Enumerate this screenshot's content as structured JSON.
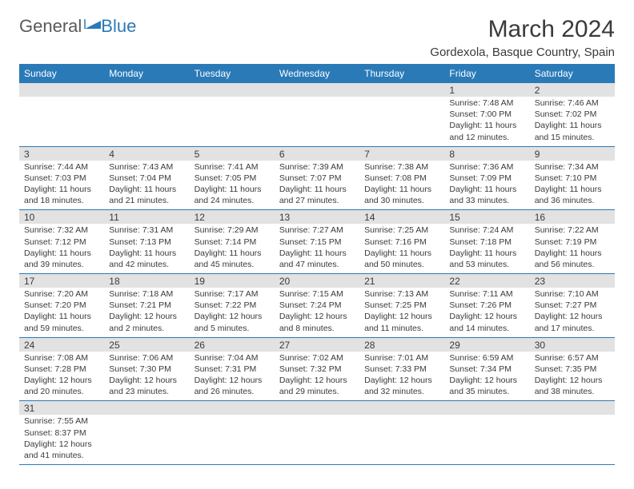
{
  "logo": {
    "text_general": "General",
    "text_blue": "Blue",
    "icon_color": "#2a7ab8",
    "general_color": "#5a5a5a"
  },
  "title": "March 2024",
  "subtitle": "Gordexola, Basque Country, Spain",
  "header_bg": "#2a7ab8",
  "daynum_bg": "#e2e2e2",
  "days": [
    "Sunday",
    "Monday",
    "Tuesday",
    "Wednesday",
    "Thursday",
    "Friday",
    "Saturday"
  ],
  "weeks": [
    [
      null,
      null,
      null,
      null,
      null,
      {
        "num": "1",
        "sunrise": "Sunrise: 7:48 AM",
        "sunset": "Sunset: 7:00 PM",
        "daylight": "Daylight: 11 hours and 12 minutes."
      },
      {
        "num": "2",
        "sunrise": "Sunrise: 7:46 AM",
        "sunset": "Sunset: 7:02 PM",
        "daylight": "Daylight: 11 hours and 15 minutes."
      }
    ],
    [
      {
        "num": "3",
        "sunrise": "Sunrise: 7:44 AM",
        "sunset": "Sunset: 7:03 PM",
        "daylight": "Daylight: 11 hours and 18 minutes."
      },
      {
        "num": "4",
        "sunrise": "Sunrise: 7:43 AM",
        "sunset": "Sunset: 7:04 PM",
        "daylight": "Daylight: 11 hours and 21 minutes."
      },
      {
        "num": "5",
        "sunrise": "Sunrise: 7:41 AM",
        "sunset": "Sunset: 7:05 PM",
        "daylight": "Daylight: 11 hours and 24 minutes."
      },
      {
        "num": "6",
        "sunrise": "Sunrise: 7:39 AM",
        "sunset": "Sunset: 7:07 PM",
        "daylight": "Daylight: 11 hours and 27 minutes."
      },
      {
        "num": "7",
        "sunrise": "Sunrise: 7:38 AM",
        "sunset": "Sunset: 7:08 PM",
        "daylight": "Daylight: 11 hours and 30 minutes."
      },
      {
        "num": "8",
        "sunrise": "Sunrise: 7:36 AM",
        "sunset": "Sunset: 7:09 PM",
        "daylight": "Daylight: 11 hours and 33 minutes."
      },
      {
        "num": "9",
        "sunrise": "Sunrise: 7:34 AM",
        "sunset": "Sunset: 7:10 PM",
        "daylight": "Daylight: 11 hours and 36 minutes."
      }
    ],
    [
      {
        "num": "10",
        "sunrise": "Sunrise: 7:32 AM",
        "sunset": "Sunset: 7:12 PM",
        "daylight": "Daylight: 11 hours and 39 minutes."
      },
      {
        "num": "11",
        "sunrise": "Sunrise: 7:31 AM",
        "sunset": "Sunset: 7:13 PM",
        "daylight": "Daylight: 11 hours and 42 minutes."
      },
      {
        "num": "12",
        "sunrise": "Sunrise: 7:29 AM",
        "sunset": "Sunset: 7:14 PM",
        "daylight": "Daylight: 11 hours and 45 minutes."
      },
      {
        "num": "13",
        "sunrise": "Sunrise: 7:27 AM",
        "sunset": "Sunset: 7:15 PM",
        "daylight": "Daylight: 11 hours and 47 minutes."
      },
      {
        "num": "14",
        "sunrise": "Sunrise: 7:25 AM",
        "sunset": "Sunset: 7:16 PM",
        "daylight": "Daylight: 11 hours and 50 minutes."
      },
      {
        "num": "15",
        "sunrise": "Sunrise: 7:24 AM",
        "sunset": "Sunset: 7:18 PM",
        "daylight": "Daylight: 11 hours and 53 minutes."
      },
      {
        "num": "16",
        "sunrise": "Sunrise: 7:22 AM",
        "sunset": "Sunset: 7:19 PM",
        "daylight": "Daylight: 11 hours and 56 minutes."
      }
    ],
    [
      {
        "num": "17",
        "sunrise": "Sunrise: 7:20 AM",
        "sunset": "Sunset: 7:20 PM",
        "daylight": "Daylight: 11 hours and 59 minutes."
      },
      {
        "num": "18",
        "sunrise": "Sunrise: 7:18 AM",
        "sunset": "Sunset: 7:21 PM",
        "daylight": "Daylight: 12 hours and 2 minutes."
      },
      {
        "num": "19",
        "sunrise": "Sunrise: 7:17 AM",
        "sunset": "Sunset: 7:22 PM",
        "daylight": "Daylight: 12 hours and 5 minutes."
      },
      {
        "num": "20",
        "sunrise": "Sunrise: 7:15 AM",
        "sunset": "Sunset: 7:24 PM",
        "daylight": "Daylight: 12 hours and 8 minutes."
      },
      {
        "num": "21",
        "sunrise": "Sunrise: 7:13 AM",
        "sunset": "Sunset: 7:25 PM",
        "daylight": "Daylight: 12 hours and 11 minutes."
      },
      {
        "num": "22",
        "sunrise": "Sunrise: 7:11 AM",
        "sunset": "Sunset: 7:26 PM",
        "daylight": "Daylight: 12 hours and 14 minutes."
      },
      {
        "num": "23",
        "sunrise": "Sunrise: 7:10 AM",
        "sunset": "Sunset: 7:27 PM",
        "daylight": "Daylight: 12 hours and 17 minutes."
      }
    ],
    [
      {
        "num": "24",
        "sunrise": "Sunrise: 7:08 AM",
        "sunset": "Sunset: 7:28 PM",
        "daylight": "Daylight: 12 hours and 20 minutes."
      },
      {
        "num": "25",
        "sunrise": "Sunrise: 7:06 AM",
        "sunset": "Sunset: 7:30 PM",
        "daylight": "Daylight: 12 hours and 23 minutes."
      },
      {
        "num": "26",
        "sunrise": "Sunrise: 7:04 AM",
        "sunset": "Sunset: 7:31 PM",
        "daylight": "Daylight: 12 hours and 26 minutes."
      },
      {
        "num": "27",
        "sunrise": "Sunrise: 7:02 AM",
        "sunset": "Sunset: 7:32 PM",
        "daylight": "Daylight: 12 hours and 29 minutes."
      },
      {
        "num": "28",
        "sunrise": "Sunrise: 7:01 AM",
        "sunset": "Sunset: 7:33 PM",
        "daylight": "Daylight: 12 hours and 32 minutes."
      },
      {
        "num": "29",
        "sunrise": "Sunrise: 6:59 AM",
        "sunset": "Sunset: 7:34 PM",
        "daylight": "Daylight: 12 hours and 35 minutes."
      },
      {
        "num": "30",
        "sunrise": "Sunrise: 6:57 AM",
        "sunset": "Sunset: 7:35 PM",
        "daylight": "Daylight: 12 hours and 38 minutes."
      }
    ],
    [
      {
        "num": "31",
        "sunrise": "Sunrise: 7:55 AM",
        "sunset": "Sunset: 8:37 PM",
        "daylight": "Daylight: 12 hours and 41 minutes."
      },
      null,
      null,
      null,
      null,
      null,
      null
    ]
  ]
}
